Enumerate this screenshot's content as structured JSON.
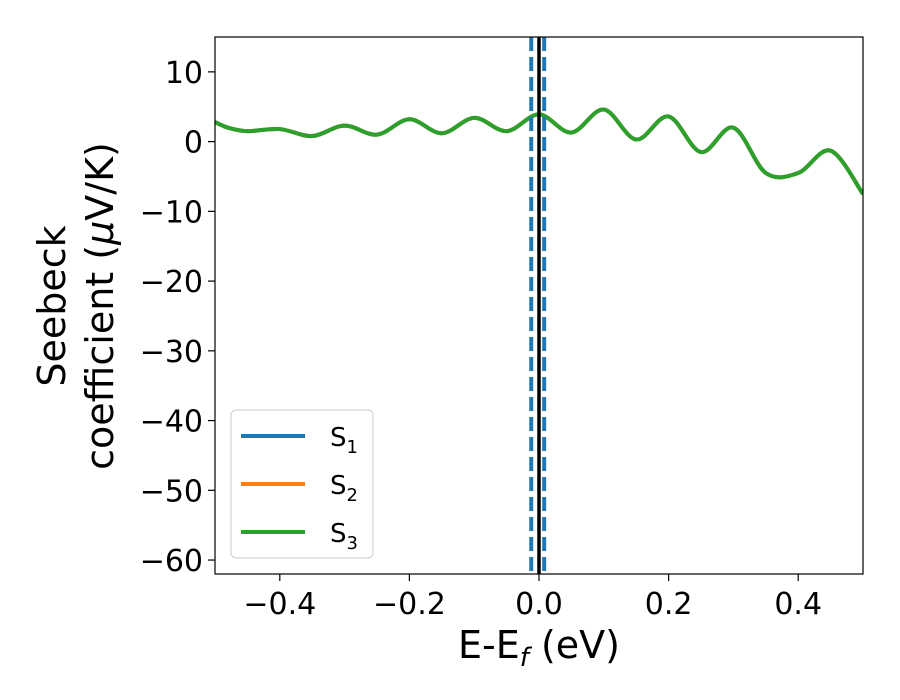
{
  "chart_data": {
    "type": "line",
    "xlabel": "E-E",
    "xlabel_sub": "f",
    "xlabel_unit": " (eV)",
    "ylabel_line1": "Seebeck",
    "ylabel_line2": "coefficient  (",
    "ylabel_mu": "μ",
    "ylabel_unit": "V/K)",
    "xlim": [
      -0.5,
      0.5
    ],
    "ylim": [
      -62,
      15
    ],
    "xticks": [
      -0.4,
      -0.2,
      0.0,
      0.2,
      0.4
    ],
    "xtick_labels": [
      "−0.4",
      "−0.2",
      "0.0",
      "0.2",
      "0.4"
    ],
    "yticks": [
      10,
      0,
      -10,
      -20,
      -30,
      -40,
      -50,
      -60
    ],
    "ytick_labels": [
      "10",
      "0",
      "−10",
      "−20",
      "−30",
      "−40",
      "−50",
      "−60"
    ],
    "grid": false,
    "legend_position": "lower-left",
    "vlines": [
      {
        "x": 0.0,
        "style": "solid",
        "color": "#000000"
      },
      {
        "x": -0.012,
        "style": "dashed",
        "color": "#1f77b4"
      },
      {
        "x": 0.008,
        "style": "dashed",
        "color": "#1f77b4"
      }
    ],
    "x": [
      -0.5,
      -0.48,
      -0.45,
      -0.4,
      -0.35,
      -0.3,
      -0.25,
      -0.2,
      -0.15,
      -0.1,
      -0.05,
      0.0,
      0.05,
      0.1,
      0.15,
      0.2,
      0.25,
      0.3,
      0.35,
      0.4,
      0.45,
      0.5
    ],
    "series": [
      {
        "name": "S",
        "sub": "1",
        "color": "#1f77b4",
        "values": [
          2.8,
          2.0,
          1.5,
          1.8,
          0.8,
          2.3,
          1.0,
          3.2,
          1.2,
          3.4,
          1.5,
          3.9,
          1.3,
          4.6,
          0.3,
          3.6,
          -1.5,
          2.0,
          -4.5,
          -4.5,
          -1.3,
          -7.5
        ]
      },
      {
        "name": "S",
        "sub": "2",
        "color": "#ff7f0e",
        "values": [
          2.8,
          2.0,
          1.5,
          1.8,
          0.8,
          2.3,
          1.0,
          3.2,
          1.2,
          3.4,
          1.5,
          3.9,
          1.3,
          4.6,
          0.3,
          3.6,
          -1.5,
          2.0,
          -4.5,
          -4.5,
          -1.3,
          -7.5
        ]
      },
      {
        "name": "S",
        "sub": "3",
        "color": "#2ca02c",
        "values": [
          2.8,
          2.0,
          1.5,
          1.8,
          0.8,
          2.3,
          1.0,
          3.2,
          1.2,
          3.4,
          1.5,
          3.9,
          1.3,
          4.6,
          0.3,
          3.6,
          -1.5,
          2.0,
          -4.5,
          -4.5,
          -1.3,
          -7.5
        ]
      }
    ]
  }
}
